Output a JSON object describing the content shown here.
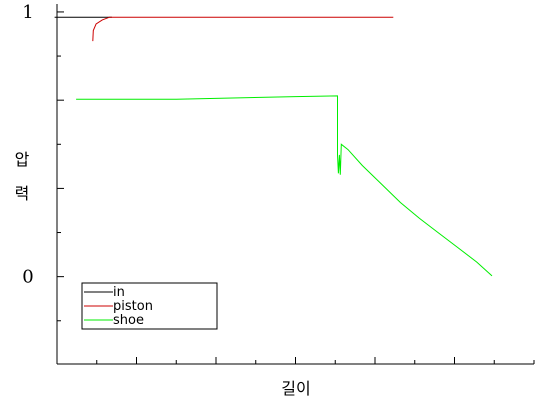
{
  "chart_data": {
    "type": "line",
    "xlabel": "길이",
    "ylabel": "압력",
    "y_ticks": [
      {
        "value": 0,
        "label": "0"
      },
      {
        "value": 1,
        "label": "1"
      }
    ],
    "xlim": [
      0,
      100
    ],
    "ylim": [
      -0.33,
      1.03
    ],
    "grid": false,
    "legend_position": "bottom-left",
    "series": [
      {
        "name": "in",
        "color": "#000000",
        "points": [
          [
            -0.5,
            0.98
          ],
          [
            11.5,
            0.98
          ]
        ]
      },
      {
        "name": "piston",
        "color": "#cc0000",
        "points": [
          [
            7.5,
            0.89
          ],
          [
            7.6,
            0.93
          ],
          [
            8.2,
            0.955
          ],
          [
            9.5,
            0.97
          ],
          [
            11,
            0.98
          ],
          [
            70.5,
            0.98
          ]
        ]
      },
      {
        "name": "shoe",
        "color": "#00ee00",
        "points": [
          [
            4,
            0.67
          ],
          [
            25,
            0.67
          ],
          [
            50,
            0.68
          ],
          [
            58.8,
            0.683
          ],
          [
            58.8,
            0.46
          ],
          [
            59,
            0.39
          ],
          [
            59.2,
            0.46
          ],
          [
            59.4,
            0.385
          ],
          [
            59.6,
            0.5
          ],
          [
            61,
            0.48
          ],
          [
            64,
            0.42
          ],
          [
            68,
            0.35
          ],
          [
            72,
            0.28
          ],
          [
            76,
            0.22
          ],
          [
            80,
            0.165
          ],
          [
            84,
            0.11
          ],
          [
            88,
            0.055
          ],
          [
            91.2,
            0.003
          ]
        ]
      }
    ]
  }
}
